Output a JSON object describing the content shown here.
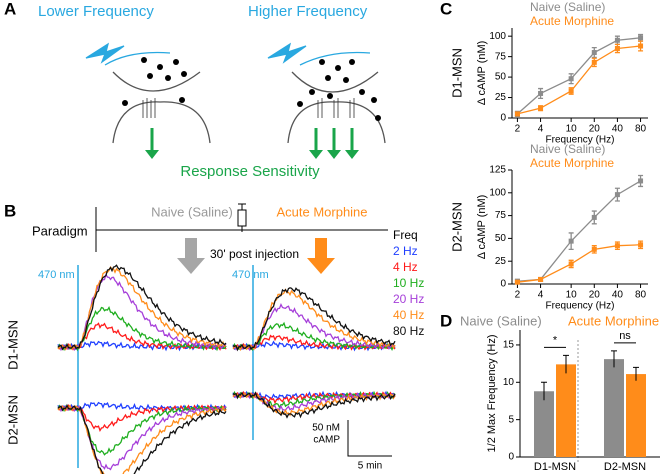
{
  "panel_a": {
    "letter": "A",
    "left_label": "Lower Frequency",
    "right_label": "Higher Frequency",
    "response_label": "Response Sensitivity"
  },
  "panel_b": {
    "letter": "B",
    "paradigm": "Paradigm",
    "naive": "Naive (Saline)",
    "morphine": "Acute Morphine",
    "post": "30' post injection",
    "freq_title": "Freq",
    "freq_legend": [
      {
        "label": "2 Hz",
        "color": "#1f3fff"
      },
      {
        "label": "4 Hz",
        "color": "#ff1a1a"
      },
      {
        "label": "10 Hz",
        "color": "#1fae1f"
      },
      {
        "label": "20 Hz",
        "color": "#a63fd9"
      },
      {
        "label": "40 Hz",
        "color": "#ff8c1a"
      },
      {
        "label": "80 Hz",
        "color": "#111111"
      }
    ],
    "stim_left": "470 nm",
    "stim_right": "470 nm",
    "row1": "D1-MSN",
    "row2": "D2-MSN",
    "scale_y": "50 nM",
    "scale_y2": "cAMP",
    "scale_x": "5 min"
  },
  "panel_c": {
    "letter": "C"
  },
  "panel_d": {
    "letter": "D"
  },
  "chart_data": [
    {
      "type": "line",
      "row_label": "D1-MSN",
      "x_label": "Frequency (Hz)",
      "y_label": "Δ cAMP (nM)",
      "xscale": "log",
      "x": [
        2,
        4,
        10,
        20,
        40,
        80
      ],
      "xlim": [
        1.7,
        100
      ],
      "xticks": [
        2,
        4,
        10,
        20,
        40,
        80
      ],
      "ylim": [
        0,
        110
      ],
      "yticks": [
        0,
        25,
        50,
        75,
        100
      ],
      "series": [
        {
          "name": "Naive (Saline)",
          "color": "#8c8c8c",
          "values": [
            5,
            30,
            48,
            80,
            95,
            98
          ],
          "errors": [
            3,
            6,
            6,
            6,
            5,
            4
          ]
        },
        {
          "name": "Acute Morphine",
          "color": "#ff8c1a",
          "values": [
            5,
            12,
            33,
            68,
            85,
            88
          ],
          "errors": [
            2,
            3,
            4,
            5,
            5,
            6
          ]
        }
      ]
    },
    {
      "type": "line",
      "row_label": "D2-MSN",
      "x_label": "Frequency (Hz)",
      "y_label": "Δ cAMP (nM)",
      "xscale": "log",
      "x": [
        2,
        4,
        10,
        20,
        40,
        80
      ],
      "xlim": [
        1.7,
        100
      ],
      "xticks": [
        2,
        4,
        10,
        20,
        40,
        80
      ],
      "ylim": [
        0,
        125
      ],
      "yticks": [
        0,
        25,
        50,
        75,
        100,
        125
      ],
      "series": [
        {
          "name": "Naive (Saline)",
          "color": "#8c8c8c",
          "values": [
            3,
            5,
            47,
            73,
            98,
            113
          ],
          "errors": [
            2,
            2,
            9,
            7,
            7,
            6
          ]
        },
        {
          "name": "Acute Morphine",
          "color": "#ff8c1a",
          "values": [
            2,
            5,
            22,
            38,
            42,
            43
          ],
          "errors": [
            1,
            2,
            4,
            4,
            4,
            4
          ]
        }
      ]
    },
    {
      "type": "bar",
      "y_label": "1/2 Max Frequency (Hz)",
      "categories": [
        "D1-MSN",
        "D2-MSN"
      ],
      "ylim": [
        0,
        17
      ],
      "yticks": [
        0,
        5,
        10,
        15
      ],
      "series": [
        {
          "name": "Naive (Saline)",
          "color": "#8c8c8c",
          "values": [
            8.8,
            13.1
          ],
          "errors": [
            1.2,
            1.1
          ]
        },
        {
          "name": "Acute Morphine",
          "color": "#ff8c1a",
          "values": [
            12.4,
            11.1
          ],
          "errors": [
            1.2,
            0.9
          ]
        }
      ],
      "annotations": [
        "*",
        "ns"
      ]
    }
  ]
}
